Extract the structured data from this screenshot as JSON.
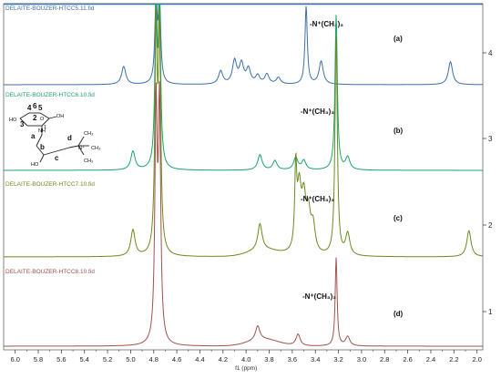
{
  "chart_data": {
    "type": "line",
    "xlim": [
      6.1,
      1.95
    ],
    "x_reversed": true,
    "x_ticks": [
      6.0,
      5.8,
      5.6,
      5.4,
      5.2,
      5.0,
      4.8,
      4.6,
      4.4,
      4.2,
      4.0,
      3.8,
      3.6,
      3.4,
      3.2,
      3.0,
      2.8,
      2.6,
      2.4,
      2.2,
      2.0
    ],
    "x_tick_labels": [
      "6.0",
      "5.8",
      "5.6",
      "5.4",
      "5.2",
      "5.0",
      "4.8",
      "4.6",
      "4.4",
      "4.2",
      "4.0",
      "3.8",
      "3.6",
      "3.4",
      "3.2",
      "3.0",
      "2.8",
      "2.6",
      "2.4",
      "2.2",
      "2.0"
    ],
    "xlabel": "f1 (ppm)",
    "right_axis_labels": [
      "4",
      "3",
      "2",
      "1"
    ],
    "series": [
      {
        "name": "DELAITE-BOUZER-HTCC5.11.fid",
        "panel": "(a)",
        "annotation": "-N⁺(CH₃)₃",
        "color": "#3d6fa8",
        "peaks": [
          {
            "x": 5.06,
            "h": 0.22
          },
          {
            "x": 4.78,
            "h": 1.0
          },
          {
            "x": 4.75,
            "h": 1.0
          },
          {
            "x": 4.22,
            "h": 0.16
          },
          {
            "x": 4.1,
            "h": 0.28
          },
          {
            "x": 4.04,
            "h": 0.24
          },
          {
            "x": 3.98,
            "h": 0.18
          },
          {
            "x": 3.9,
            "h": 0.1
          },
          {
            "x": 3.82,
            "h": 0.12
          },
          {
            "x": 3.72,
            "h": 0.08
          },
          {
            "x": 3.48,
            "h": 0.95
          },
          {
            "x": 3.35,
            "h": 0.28
          },
          {
            "x": 2.23,
            "h": 0.28
          }
        ]
      },
      {
        "name": "DELAITE-BOUZER-HTCC6.10.fid",
        "panel": "(b)",
        "annotation": "-N⁺(CH₃)₃",
        "color": "#1aa36a",
        "peaks": [
          {
            "x": 4.98,
            "h": 0.12
          },
          {
            "x": 4.78,
            "h": 1.0
          },
          {
            "x": 4.75,
            "h": 1.0
          },
          {
            "x": 3.88,
            "h": 0.1
          },
          {
            "x": 3.75,
            "h": 0.06
          },
          {
            "x": 3.57,
            "h": 0.08
          },
          {
            "x": 3.5,
            "h": 0.06
          },
          {
            "x": 3.22,
            "h": 1.0
          },
          {
            "x": 3.12,
            "h": 0.08
          }
        ]
      },
      {
        "name": "DELAITE-BOUZER-HTCC7.10.fid",
        "panel": "(c)",
        "annotation": "-N⁺(CH₃)₃",
        "color": "#6b8a1f",
        "peaks": [
          {
            "x": 4.98,
            "h": 0.12
          },
          {
            "x": 4.78,
            "h": 1.0
          },
          {
            "x": 4.75,
            "h": 1.0
          },
          {
            "x": 3.88,
            "h": 0.12
          },
          {
            "x": 3.57,
            "h": 0.35
          },
          {
            "x": 3.54,
            "h": 0.28
          },
          {
            "x": 3.5,
            "h": 0.22
          },
          {
            "x": 3.46,
            "h": 0.16
          },
          {
            "x": 3.42,
            "h": 0.12
          },
          {
            "x": 3.22,
            "h": 1.0
          },
          {
            "x": 3.12,
            "h": 0.1
          },
          {
            "x": 2.07,
            "h": 0.12
          }
        ]
      },
      {
        "name": "DELAITE-BOUZER-HTCC8.10.fid",
        "panel": "(d)",
        "annotation": "-N⁺(CH₃)₃",
        "color": "#a0524c",
        "peaks": [
          {
            "x": 4.78,
            "h": 1.0
          },
          {
            "x": 4.75,
            "h": 1.0
          },
          {
            "x": 3.9,
            "h": 0.06
          },
          {
            "x": 3.55,
            "h": 0.05
          },
          {
            "x": 3.22,
            "h": 0.38
          },
          {
            "x": 3.12,
            "h": 0.04
          }
        ]
      }
    ],
    "structure_labels": [
      "4",
      "6",
      "5",
      "HO",
      "3",
      "2",
      "O",
      "OH",
      "NH",
      "1",
      "a",
      "b",
      "c",
      "d",
      "N⁺",
      "CH₃",
      "CH₃",
      "CH₃",
      "HO"
    ]
  }
}
